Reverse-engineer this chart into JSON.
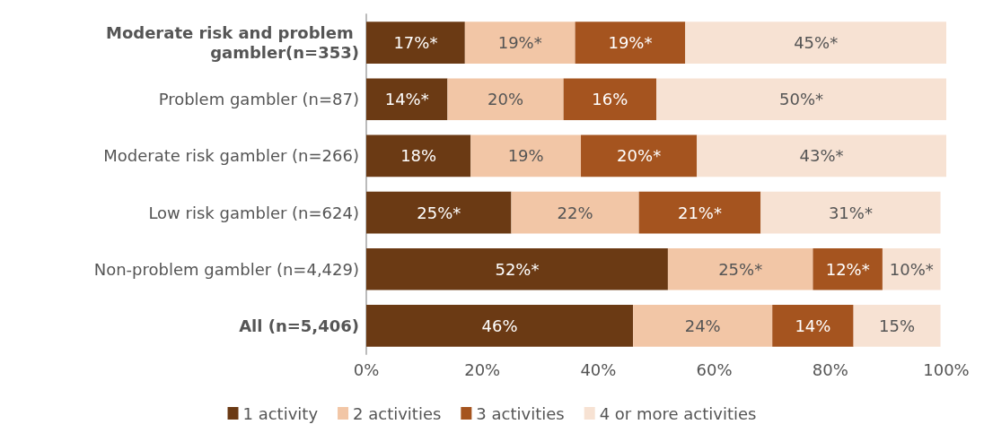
{
  "chart_data": {
    "type": "bar",
    "orientation": "horizontal",
    "stacked": true,
    "categories": [
      "Moderate risk and problem gambler(n=353)",
      "Problem gambler (n=87)",
      "Moderate risk gambler (n=266)",
      "Low risk gambler (n=624)",
      "Non-problem gambler (n=4,429)",
      "All (n=5,406)"
    ],
    "series": [
      {
        "name": "1 activity",
        "color": "#6b3a14",
        "values": [
          17,
          14,
          18,
          25,
          52,
          46
        ],
        "value_labels": [
          "17%*",
          "14%*",
          "18%",
          "25%*",
          "52%*",
          "46%"
        ]
      },
      {
        "name": "2 activities",
        "color": "#f2c6a6",
        "values": [
          19,
          20,
          19,
          22,
          25,
          24
        ],
        "value_labels": [
          "19%*",
          "20%",
          "19%",
          "22%",
          "25%*",
          "24%"
        ]
      },
      {
        "name": "3 activities",
        "color": "#a5541f",
        "values": [
          19,
          16,
          20,
          21,
          12,
          14
        ],
        "value_labels": [
          "19%*",
          "16%",
          "20%*",
          "21%*",
          "12%*",
          "14%"
        ]
      },
      {
        "name": "4 or more activities",
        "color": "#f7e2d3",
        "values": [
          45,
          50,
          43,
          31,
          10,
          15
        ],
        "value_labels": [
          "45%*",
          "50%*",
          "43%*",
          "31%*",
          "10%*",
          "15%"
        ]
      }
    ],
    "xlim": [
      0,
      100
    ],
    "xticks": [
      {
        "value": 0,
        "label": "0%"
      },
      {
        "value": 20,
        "label": "20%"
      },
      {
        "value": 40,
        "label": "40%"
      },
      {
        "value": 60,
        "label": "60%"
      },
      {
        "value": 80,
        "label": "80%"
      },
      {
        "value": 100,
        "label": "100%"
      }
    ],
    "grid": false,
    "legend": "bottom"
  }
}
